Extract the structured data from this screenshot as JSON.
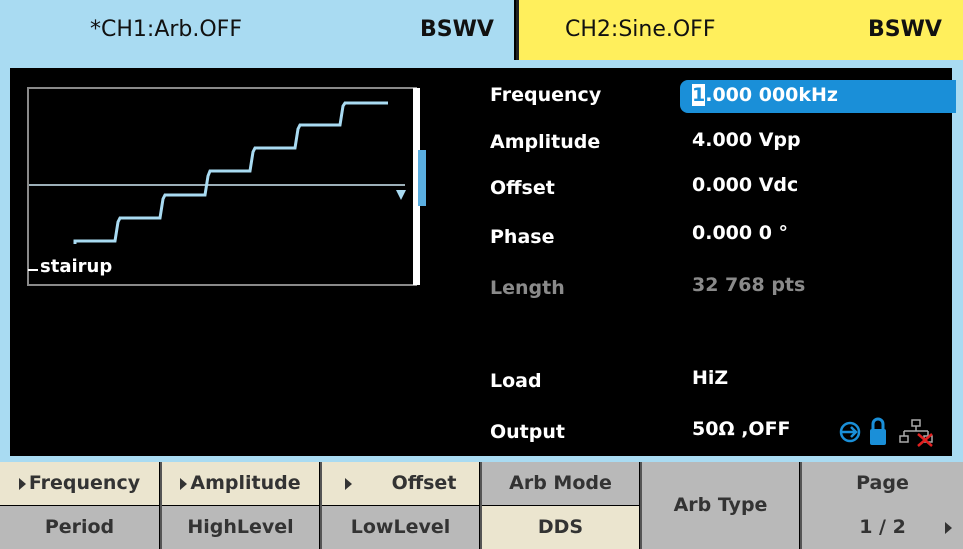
{
  "header": {
    "ch1": {
      "name": "*CH1:Arb.OFF",
      "mode": "BSWV"
    },
    "ch2": {
      "name": "CH2:Sine.OFF",
      "mode": "BSWV"
    }
  },
  "waveform": {
    "label": "stairup"
  },
  "params": [
    {
      "label": "Frequency",
      "cursor": "1",
      "value": ".000 000kHz"
    },
    {
      "label": "Amplitude",
      "value": "4.000 Vpp"
    },
    {
      "label": "Offset",
      "value": "0.000 Vdc"
    },
    {
      "label": "Phase",
      "value": "0.000 0 °"
    },
    {
      "label": "Length",
      "value": "32 768 pts"
    },
    {
      "label": "Load",
      "value": "HiZ"
    },
    {
      "label": "Output",
      "value": "50Ω ,OFF"
    }
  ],
  "menu": [
    {
      "top": "Frequency",
      "bottom": "Period"
    },
    {
      "top": "Amplitude",
      "bottom": "HighLevel"
    },
    {
      "top": "Offset",
      "bottom": "LowLevel"
    },
    {
      "top": "Arb Mode",
      "bottom": "DDS"
    },
    {
      "label": "Arb Type"
    },
    {
      "top": "Page",
      "bottom": "1 / 2"
    }
  ]
}
